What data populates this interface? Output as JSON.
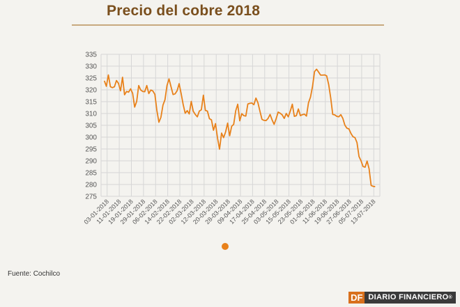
{
  "header": {
    "title": "Precio del cobre 2018"
  },
  "footer": {
    "source": "Fuente: Cochilco",
    "brand_short": "DF",
    "brand_name": "DIARIO FINANCIERO",
    "brand_mark": "®"
  },
  "colors": {
    "line": "#e8811a",
    "grid": "#d6d6d6",
    "title": "#7a4f1d",
    "brand_accent": "#d8701d"
  },
  "chart_data": {
    "type": "line",
    "title": "Precio del cobre 2018",
    "xlabel": "",
    "ylabel": "",
    "ylim": [
      275,
      335
    ],
    "yticks": [
      275,
      280,
      285,
      290,
      295,
      300,
      305,
      310,
      315,
      320,
      325,
      330,
      335
    ],
    "grid": true,
    "legend": "bottom",
    "x_ticks": [
      "03-01-2018",
      "11-01-2018",
      "19-01-2018",
      "29-01-2018",
      "06-02-2018",
      "14-02-2018",
      "22-02-2018",
      "02-03-2018",
      "12-03-2018",
      "20-03-2018",
      "28-03-2018",
      "09-04-2018",
      "17-04-2018",
      "25-04-2018",
      "03-05-2018",
      "15-05-2018",
      "23-05-2018",
      "01-06-2018",
      "11-06-2018",
      "19-06-2018",
      "27-06-2018",
      "05-07-2018",
      "13-07-2018"
    ],
    "series": [
      {
        "values": [
          323.8,
          321.5,
          326.3,
          321.3,
          320.9,
          321.3,
          323.9,
          322.7,
          319.6,
          325.3,
          317.9,
          319.3,
          319.0,
          320.4,
          318.5,
          312.7,
          315.1,
          321.8,
          319.9,
          319.3,
          319.2,
          321.8,
          318.4,
          319.9,
          319.5,
          318.1,
          311.2,
          306.3,
          308.4,
          313.5,
          315.8,
          321.8,
          324.6,
          321.3,
          318.0,
          318.3,
          319.6,
          322.6,
          318.4,
          313.8,
          310.1,
          311.2,
          309.8,
          315.1,
          310.9,
          309.6,
          308.6,
          311.0,
          311.6,
          317.7,
          311.3,
          311.0,
          307.8,
          307.3,
          302.9,
          305.7,
          299.6,
          294.9,
          301.7,
          299.8,
          302.2,
          305.9,
          300.6,
          304.6,
          305.4,
          311.1,
          313.9,
          306.9,
          309.9,
          309.1,
          308.9,
          314.0,
          314.3,
          314.4,
          313.7,
          316.5,
          314.5,
          310.9,
          307.5,
          307.1,
          307.0,
          307.9,
          309.6,
          307.3,
          305.4,
          307.8,
          310.6,
          310.1,
          309.4,
          307.9,
          310.0,
          308.6,
          311.0,
          313.9,
          308.8,
          309.1,
          311.9,
          309.1,
          309.5,
          309.7,
          308.9,
          314.5,
          316.9,
          321.4,
          327.7,
          328.7,
          327.5,
          326.2,
          326.2,
          326.3,
          325.9,
          322.2,
          316.6,
          309.6,
          309.4,
          308.8,
          308.6,
          309.5,
          307.9,
          305.1,
          303.8,
          303.5,
          301.6,
          300.2,
          299.8,
          297.7,
          291.8,
          290.0,
          287.6,
          287.3,
          289.9,
          286.6,
          279.6,
          279.2,
          279.1
        ]
      }
    ]
  }
}
